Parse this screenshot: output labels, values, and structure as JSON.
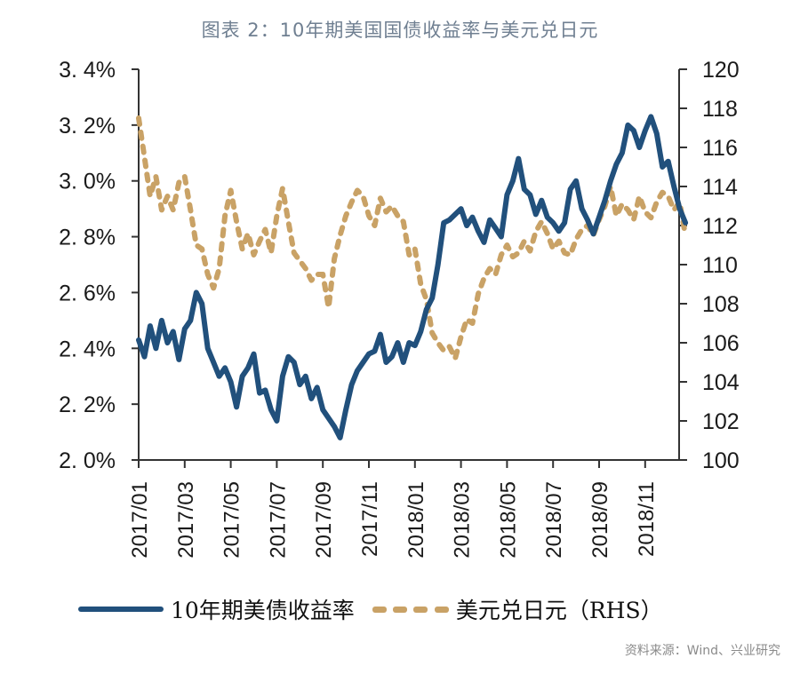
{
  "title": "图表 2：10年期美国国债收益率与美元兑日元",
  "source": "资料来源：Wind、兴业研究",
  "colors": {
    "yield": "#21507c",
    "usdjpy": "#c9a266",
    "axis": "#333333",
    "title": "#6f7f91"
  },
  "legend": [
    {
      "label": "10年期美债收益率",
      "style": "solid",
      "color": "#21507c"
    },
    {
      "label": "美元兑日元（RHS）",
      "style": "dashed",
      "color": "#c9a266"
    }
  ],
  "chart_data": {
    "type": "line",
    "title": "图表 2：10年期美国国债收益率与美元兑日元",
    "xlabel": "",
    "ylabel": "",
    "x_ticks": [
      "2017/01",
      "2017/03",
      "2017/05",
      "2017/07",
      "2017/09",
      "2017/11",
      "2018/01",
      "2018/03",
      "2018/05",
      "2018/07",
      "2018/09",
      "2018/11"
    ],
    "x_range": [
      "2017-01-01",
      "2018-12-31"
    ],
    "y_left": {
      "range": [
        2.0,
        3.4
      ],
      "ticks": [
        "2.0%",
        "2.2%",
        "2.4%",
        "2.6%",
        "2.8%",
        "3.0%",
        "3.2%",
        "3.4%"
      ]
    },
    "y_right": {
      "range": [
        100,
        120
      ],
      "ticks": [
        "100",
        "102",
        "104",
        "106",
        "108",
        "110",
        "112",
        "114",
        "116",
        "118",
        "120"
      ],
      "label": "RHS"
    },
    "grid": false,
    "legend_position": "bottom",
    "series": [
      {
        "name": "10年期美债收益率",
        "axis": "left",
        "style": "solid",
        "x_months": [
          0,
          0.25,
          0.5,
          0.75,
          1,
          1.25,
          1.5,
          1.75,
          2,
          2.25,
          2.5,
          2.75,
          3,
          3.25,
          3.5,
          3.75,
          4,
          4.25,
          4.5,
          4.75,
          5,
          5.25,
          5.5,
          5.75,
          6,
          6.25,
          6.5,
          6.75,
          7,
          7.25,
          7.5,
          7.75,
          8,
          8.25,
          8.5,
          8.75,
          9,
          9.25,
          9.5,
          9.75,
          10,
          10.25,
          10.5,
          10.75,
          11,
          11.25,
          11.5,
          11.75,
          12,
          12.25,
          12.5,
          12.75,
          13,
          13.25,
          13.5,
          13.75,
          14,
          14.25,
          14.5,
          14.75,
          15,
          15.25,
          15.5,
          15.75,
          16,
          16.25,
          16.5,
          16.75,
          17,
          17.25,
          17.5,
          17.75,
          18,
          18.25,
          18.5,
          18.75,
          19,
          19.25,
          19.5,
          19.75,
          20,
          20.25,
          20.5,
          20.75,
          21,
          21.25,
          21.5,
          21.75,
          22,
          22.25,
          22.5,
          22.75,
          23,
          23.25,
          23.5,
          23.75
        ],
        "values": [
          2.43,
          2.37,
          2.48,
          2.4,
          2.5,
          2.42,
          2.46,
          2.36,
          2.47,
          2.5,
          2.6,
          2.56,
          2.4,
          2.35,
          2.3,
          2.33,
          2.28,
          2.19,
          2.3,
          2.33,
          2.38,
          2.24,
          2.25,
          2.18,
          2.14,
          2.3,
          2.37,
          2.35,
          2.27,
          2.3,
          2.22,
          2.26,
          2.18,
          2.15,
          2.12,
          2.08,
          2.18,
          2.27,
          2.32,
          2.35,
          2.38,
          2.39,
          2.45,
          2.35,
          2.37,
          2.42,
          2.35,
          2.42,
          2.41,
          2.46,
          2.54,
          2.58,
          2.7,
          2.85,
          2.86,
          2.88,
          2.9,
          2.84,
          2.87,
          2.82,
          2.78,
          2.86,
          2.83,
          2.8,
          2.95,
          3.0,
          3.08,
          2.97,
          2.95,
          2.88,
          2.93,
          2.87,
          2.85,
          2.82,
          2.85,
          2.97,
          3.0,
          2.9,
          2.86,
          2.81,
          2.87,
          2.93,
          3.0,
          3.06,
          3.1,
          3.2,
          3.18,
          3.12,
          3.18,
          3.23,
          3.17,
          3.05,
          3.07,
          2.98,
          2.9,
          2.85,
          2.83,
          2.74
        ]
      },
      {
        "name": "美元兑日元（RHS）",
        "axis": "right",
        "style": "dashed",
        "x_months": [
          0,
          0.25,
          0.5,
          0.75,
          1,
          1.25,
          1.5,
          1.75,
          2,
          2.25,
          2.5,
          2.75,
          3,
          3.25,
          3.5,
          3.75,
          4,
          4.25,
          4.5,
          4.75,
          5,
          5.25,
          5.5,
          5.75,
          6,
          6.25,
          6.5,
          6.75,
          7,
          7.25,
          7.5,
          7.75,
          8,
          8.25,
          8.5,
          8.75,
          9,
          9.25,
          9.5,
          9.75,
          10,
          10.25,
          10.5,
          10.75,
          11,
          11.25,
          11.5,
          11.75,
          12,
          12.25,
          12.5,
          12.75,
          13,
          13.25,
          13.5,
          13.75,
          14,
          14.25,
          14.5,
          14.75,
          15,
          15.25,
          15.5,
          15.75,
          16,
          16.25,
          16.5,
          16.75,
          17,
          17.25,
          17.5,
          17.75,
          18,
          18.25,
          18.5,
          18.75,
          19,
          19.25,
          19.5,
          19.75,
          20,
          20.25,
          20.5,
          20.75,
          21,
          21.25,
          21.5,
          21.75,
          22,
          22.25,
          22.5,
          22.75,
          23,
          23.25,
          23.5,
          23.75
        ],
        "values": [
          117.5,
          115.5,
          113.5,
          114.5,
          112.8,
          113.5,
          112.8,
          114.2,
          114.5,
          112.8,
          111.0,
          110.8,
          109.5,
          108.8,
          109.8,
          112.5,
          113.8,
          112.2,
          110.8,
          111.6,
          110.5,
          111.2,
          111.8,
          110.6,
          112.5,
          113.9,
          112.2,
          110.6,
          110.2,
          109.8,
          109.2,
          109.5,
          109.5,
          107.8,
          110.3,
          111.5,
          112.5,
          113.2,
          113.8,
          113.5,
          112.5,
          112.0,
          113.4,
          112.7,
          113.0,
          112.5,
          112.2,
          110.5,
          110.8,
          109.0,
          108.2,
          106.5,
          106.0,
          105.6,
          105.8,
          105.2,
          106.3,
          107.2,
          107.0,
          108.5,
          109.3,
          109.8,
          109.5,
          110.5,
          111.0,
          110.4,
          110.6,
          111.2,
          110.7,
          111.7,
          112.2,
          111.6,
          110.8,
          111.2,
          110.6,
          110.5,
          111.3,
          111.8,
          112.0,
          111.5,
          112.3,
          113.0,
          114.0,
          112.5,
          113.1,
          112.8,
          112.3,
          113.5,
          112.7,
          112.4,
          113.2,
          113.7,
          113.5,
          112.8,
          113.2,
          111.5
        ]
      }
    ]
  }
}
